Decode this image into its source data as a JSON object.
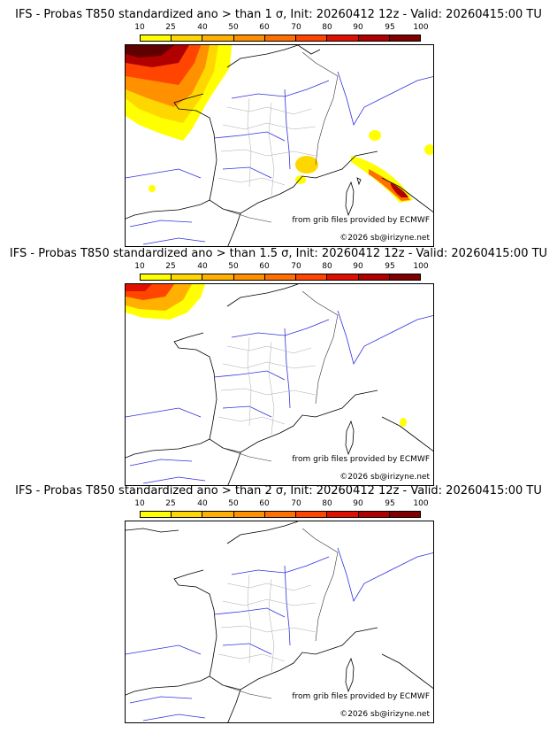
{
  "legend": {
    "ticks": [
      "10",
      "25",
      "40",
      "50",
      "60",
      "70",
      "80",
      "90",
      "95",
      "100"
    ],
    "colors": [
      "#ffff00",
      "#ffd700",
      "#ffb000",
      "#ff9000",
      "#ff7000",
      "#ff4500",
      "#e01000",
      "#b00000",
      "#800000",
      "#500000"
    ]
  },
  "panels": [
    {
      "title": "IFS - Probas T850  standardized ano > than 1 σ, Init: 20260412 12z - Valid: 20260415:00 TU",
      "credit_source": "from grib files provided by ECMWF",
      "credit_copy": "©2026 sb@irizyne.net"
    },
    {
      "title": "IFS - Probas T850  standardized ano > than 1.5 σ, Init: 20260412 12z - Valid: 20260415:00 TU",
      "credit_source": "from grib files provided by ECMWF",
      "credit_copy": "©2026 sb@irizyne.net"
    },
    {
      "title": "IFS - Probas T850  standardized ano > than 2 σ, Init: 20260412 12z - Valid: 20260415:00 TU",
      "credit_source": "from grib files provided by ECMWF",
      "credit_copy": "©2026 sb@irizyne.net"
    }
  ]
}
